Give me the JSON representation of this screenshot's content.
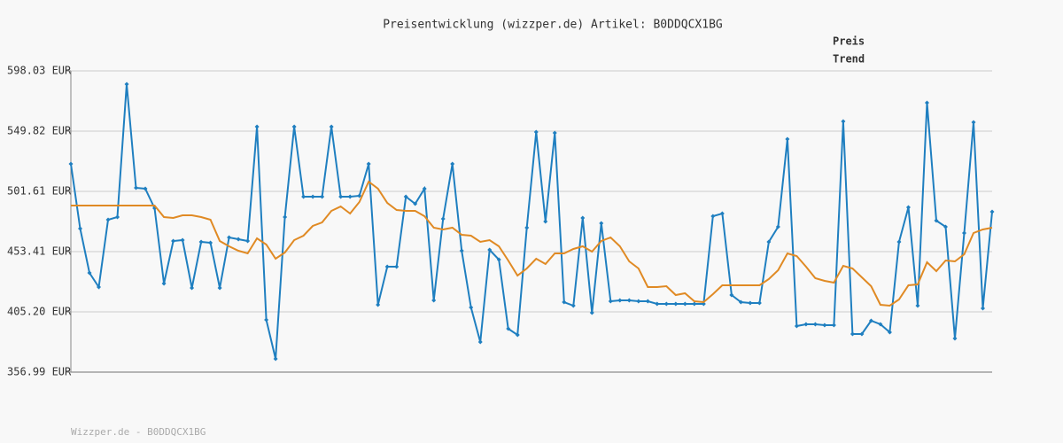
{
  "chart_data": {
    "type": "line",
    "title": "Preisentwicklung (wizzper.de) Artikel: B0DDQCX1BG",
    "footer": "Wizzper.de - B0DDQCX1BG",
    "ylim": [
      356.99,
      598.03
    ],
    "yticks": [
      {
        "value": 356.99,
        "label": "356.99 EUR"
      },
      {
        "value": 405.2,
        "label": "405.20 EUR"
      },
      {
        "value": 453.41,
        "label": "453.41 EUR"
      },
      {
        "value": 501.61,
        "label": "501.61 EUR"
      },
      {
        "value": 549.82,
        "label": "549.82 EUR"
      },
      {
        "value": 598.03,
        "label": "598.03 EUR"
      }
    ],
    "grid": true,
    "series": [
      {
        "name": "Preis",
        "color": "#1f7fc0",
        "markers": true,
        "values": [
          523.59,
          471.84,
          436.39,
          425.05,
          478.93,
          481.05,
          587.4,
          504.45,
          503.74,
          488.14,
          427.88,
          461.91,
          462.62,
          424.34,
          461.2,
          460.5,
          424.34,
          464.75,
          463.33,
          461.91,
          553.37,
          398.82,
          367.62,
          481.05,
          553.37,
          497.36,
          497.36,
          497.36,
          553.37,
          497.36,
          497.36,
          498.07,
          523.59,
          410.87,
          441.35,
          441.35,
          497.36,
          491.69,
          503.74,
          414.41,
          479.64,
          523.59,
          454.12,
          408.74,
          381.09,
          454.82,
          447.03,
          391.73,
          386.77,
          472.55,
          549.11,
          477.51,
          548.4,
          413.0,
          410.16,
          480.35,
          404.49,
          476.09,
          413.71,
          414.41,
          414.41,
          413.71,
          413.71,
          411.58,
          411.58,
          411.58,
          411.58,
          411.58,
          411.58,
          481.76,
          483.89,
          418.67,
          413.0,
          412.29,
          412.29,
          461.2,
          473.26,
          543.44,
          393.86,
          395.27,
          395.27,
          394.56,
          394.56,
          557.62,
          387.48,
          387.48,
          398.11,
          395.27,
          388.89,
          461.2,
          488.85,
          410.16,
          572.51,
          478.22,
          473.26,
          383.93,
          468.29,
          556.91,
          408.03,
          485.31
        ]
      },
      {
        "name": "Trend",
        "color": "#e08a24",
        "markers": false,
        "values": [
          490.27,
          490.27,
          490.27,
          490.27,
          490.27,
          490.27,
          490.27,
          490.27,
          490.27,
          490.27,
          481.05,
          480.35,
          482.47,
          482.47,
          481.05,
          478.93,
          461.91,
          457.66,
          454.12,
          451.99,
          464.04,
          459.08,
          447.73,
          452.7,
          462.62,
          466.17,
          473.97,
          476.8,
          486.02,
          489.56,
          483.89,
          493.11,
          509.41,
          503.74,
          492.4,
          486.73,
          486.02,
          486.02,
          481.76,
          472.55,
          471.13,
          472.55,
          466.88,
          466.17,
          461.2,
          462.62,
          457.66,
          446.32,
          434.26,
          439.94,
          447.73,
          443.48,
          451.99,
          451.99,
          455.53,
          457.66,
          453.41,
          461.91,
          464.75,
          457.66,
          445.61,
          439.94,
          425.05,
          425.05,
          425.76,
          418.67,
          420.09,
          413.71,
          413.0,
          419.38,
          426.47,
          426.47,
          426.47,
          426.47,
          426.47,
          431.43,
          438.52,
          451.99,
          449.86,
          441.35,
          432.14,
          430.01,
          428.59,
          442.06,
          439.94,
          432.85,
          425.76,
          410.87,
          410.16,
          415.12,
          426.47,
          427.18,
          444.9,
          437.81,
          446.32,
          445.61,
          451.28,
          468.29,
          471.13,
          472.55
        ]
      }
    ]
  }
}
